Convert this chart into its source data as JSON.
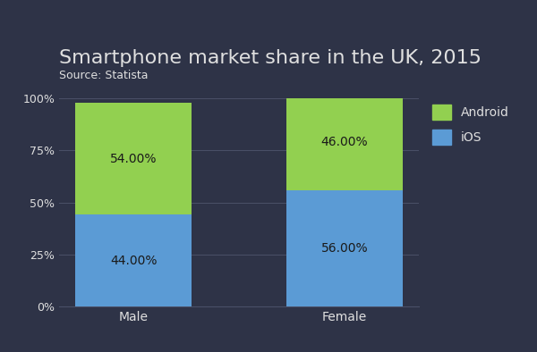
{
  "title": "Smartphone market share in the UK, 2015",
  "subtitle": "Source: Statista",
  "categories": [
    "Male",
    "Female"
  ],
  "ios_values": [
    44,
    56
  ],
  "android_values": [
    54,
    46
  ],
  "ios_color": "#5b9bd5",
  "android_color": "#92d050",
  "background_color": "#2e3347",
  "text_color": "#e0e0e0",
  "grid_color": "#4a5068",
  "label_color": "#1a1a1a",
  "yticks": [
    0,
    25,
    50,
    75,
    100
  ],
  "ytick_labels": [
    "0%",
    "25%",
    "50%",
    "75%",
    "100%"
  ],
  "bar_width": 0.55,
  "title_fontsize": 16,
  "subtitle_fontsize": 9,
  "label_fontsize": 10
}
